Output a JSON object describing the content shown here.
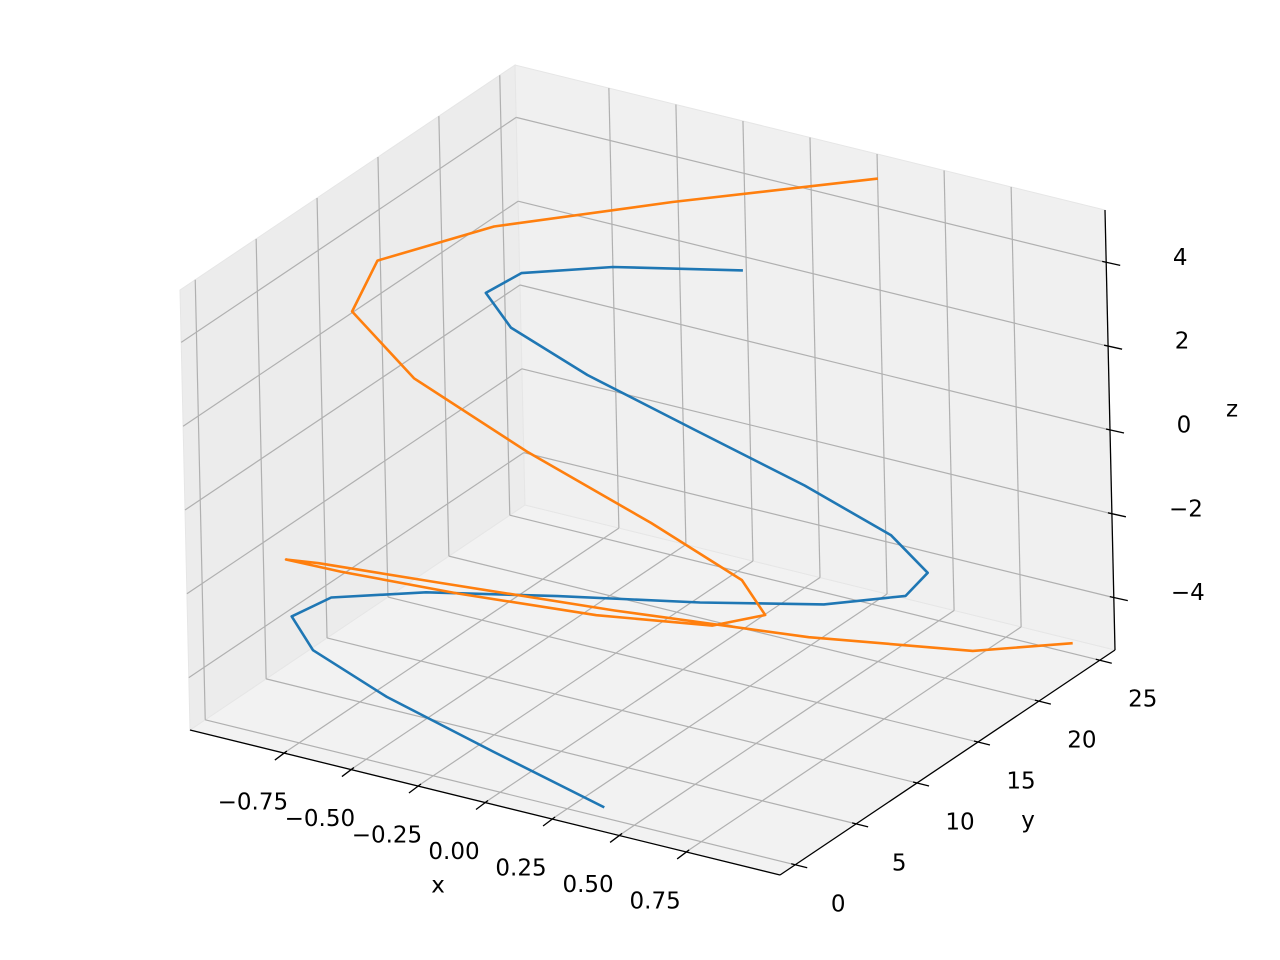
{
  "chart_data": {
    "type": "line3d",
    "xlabel": "x",
    "ylabel": "y",
    "zlabel": "z",
    "xlim": [
      -1.1,
      1.1
    ],
    "ylim": [
      -1.25,
      26.25
    ],
    "zlim": [
      -5.25,
      5.25
    ],
    "xticks": [
      {
        "value": -0.75,
        "label": "−0.75"
      },
      {
        "value": -0.5,
        "label": "−0.50"
      },
      {
        "value": -0.25,
        "label": "−0.25"
      },
      {
        "value": 0,
        "label": "0.00"
      },
      {
        "value": 0.25,
        "label": "0.25"
      },
      {
        "value": 0.5,
        "label": "0.50"
      },
      {
        "value": 0.75,
        "label": "0.75"
      }
    ],
    "yticks": [
      0,
      5,
      10,
      15,
      20,
      25
    ],
    "zticks": [
      {
        "value": -4,
        "label": "−4"
      },
      {
        "value": -2,
        "label": "−2"
      },
      0,
      2,
      4
    ],
    "grid": true,
    "series": [
      {
        "color": "#1f77b4",
        "x": [
          0.389,
          -0.081,
          -0.533,
          -0.864,
          -0.999,
          -0.907,
          -0.609,
          -0.174,
          0.302,
          0.708,
          0.957,
          0.984,
          0.792,
          0.414,
          -0.051,
          -0.507,
          -0.848,
          -0.997,
          -0.92,
          -0.634,
          -0.205
        ],
        "y": [
          0,
          1.25,
          2.5,
          3.75,
          5,
          6.25,
          7.5,
          8.75,
          10,
          11.25,
          12.5,
          13.75,
          15,
          16.25,
          17.5,
          18.75,
          20,
          21.25,
          22.5,
          23.75,
          25
        ],
        "z": [
          -5,
          -4.65,
          -4.3,
          -3.95,
          -3.6,
          -3.25,
          -2.9,
          -2.55,
          -2.2,
          -1.85,
          -1.5,
          -1.15,
          -0.8,
          -0.45,
          -0.1,
          0.25,
          0.6,
          0.95,
          1.3,
          1.65,
          2
        ]
      },
      {
        "color": "#ff7f0e",
        "x": [
          1,
          0.845,
          0.428,
          -0.124,
          -0.636,
          -0.951,
          -0.969,
          -0.684,
          -0.191,
          0.364,
          0.809,
          0.997,
          0.878,
          0.484,
          -0.052,
          -0.578,
          -0.932,
          -0.983,
          -0.717,
          -0.243,
          0.309
        ],
        "y": [
          25,
          20.25,
          16,
          12.25,
          9,
          6.25,
          4,
          2.25,
          1,
          0.25,
          0,
          0.25,
          1,
          2.25,
          4,
          6.25,
          9,
          12.25,
          16,
          20.25,
          25
        ],
        "z": [
          -5,
          -4.5,
          -4,
          -3.5,
          -3,
          -2.5,
          -2,
          -1.5,
          -1,
          -0.5,
          0,
          0.5,
          1,
          1.5,
          2,
          2.5,
          3,
          3.5,
          4,
          4.5,
          5
        ]
      }
    ]
  }
}
